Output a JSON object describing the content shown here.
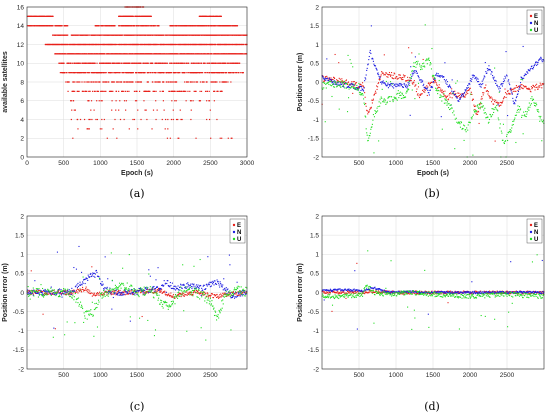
{
  "colors": {
    "E": "#e8201a",
    "N": "#1e1ee0",
    "U": "#22dd22",
    "sat": "#e8201a"
  },
  "chart_data": [
    {
      "id": "a",
      "type": "scatter",
      "panel_label": "(a)",
      "xlabel": "Epoch (s)",
      "ylabel": "available satellites",
      "xlim": [
        0,
        3000
      ],
      "ylim": [
        0,
        16
      ],
      "grid": true,
      "xticks": [
        0,
        500,
        1000,
        1500,
        2000,
        2500,
        3000
      ],
      "yticks": [
        0,
        2,
        4,
        6,
        8,
        10,
        12,
        14,
        16
      ],
      "bands": [
        {
          "y": 16,
          "spans": [
            [
              1330,
              1590
            ]
          ],
          "density": 0.7
        },
        {
          "y": 15,
          "spans": [
            [
              0,
              360
            ],
            [
              1250,
              1700
            ],
            [
              2350,
              2650
            ]
          ],
          "density": 0.9
        },
        {
          "y": 14,
          "spans": [
            [
              0,
              560
            ],
            [
              930,
              1200
            ],
            [
              1250,
              1800
            ],
            [
              1950,
              2880
            ]
          ],
          "density": 0.75
        },
        {
          "y": 13,
          "spans": [
            [
              350,
              560
            ],
            [
              600,
              1250
            ],
            [
              1250,
              3000
            ]
          ],
          "density": 0.75
        },
        {
          "y": 12,
          "spans": [
            [
              250,
              3000
            ]
          ],
          "density": 0.8
        },
        {
          "y": 11,
          "spans": [
            [
              380,
              3000
            ]
          ],
          "density": 0.8
        },
        {
          "y": 10,
          "spans": [
            [
              420,
              2900
            ]
          ],
          "density": 0.55
        },
        {
          "y": 9,
          "spans": [
            [
              450,
              2950
            ]
          ],
          "density": 0.55
        },
        {
          "y": 8,
          "spans": [
            [
              520,
              2800
            ]
          ],
          "density": 0.35
        },
        {
          "y": 7,
          "spans": [
            [
              560,
              2700
            ]
          ],
          "density": 0.25
        },
        {
          "y": 6,
          "spans": [
            [
              580,
              2600
            ]
          ],
          "density": 0.12
        },
        {
          "y": 5,
          "spans": [
            [
              590,
              2500
            ]
          ],
          "density": 0.06
        },
        {
          "y": 4,
          "spans": [
            [
              590,
              2600
            ]
          ],
          "density": 0.05
        },
        {
          "y": 3,
          "spans": [
            [
              590,
              2000
            ]
          ],
          "density": 0.04
        },
        {
          "y": 2,
          "spans": [
            [
              600,
              2800
            ]
          ],
          "density": 0.03
        },
        {
          "y": 1,
          "spans": [
            [
              600,
              620
            ]
          ],
          "density": 0.03
        }
      ]
    },
    {
      "id": "b",
      "type": "scatter",
      "panel_label": "(b)",
      "xlabel": "Epoch (s)",
      "ylabel": "Position error (m)",
      "xlim": [
        0,
        3000
      ],
      "ylim": [
        -2,
        2
      ],
      "grid": true,
      "xticks": [
        500,
        1000,
        1500,
        2000,
        2500
      ],
      "yticks": [
        -2,
        -1.5,
        -1,
        -0.5,
        0,
        0.5,
        1,
        1.5,
        2
      ],
      "legend": {
        "position": "top-right",
        "entries": [
          "E",
          "N",
          "U"
        ]
      },
      "series": [
        {
          "name": "E",
          "scatter": 0.08,
          "outlier_rate": 0.04,
          "points": [
            [
              0,
              0.1
            ],
            [
              300,
              0.0
            ],
            [
              500,
              -0.1
            ],
            [
              560,
              -0.1
            ],
            [
              620,
              -0.9
            ],
            [
              700,
              -0.4
            ],
            [
              800,
              0.2
            ],
            [
              900,
              0.2
            ],
            [
              1000,
              0.15
            ],
            [
              1150,
              0.1
            ],
            [
              1250,
              0.0
            ],
            [
              1300,
              -0.4
            ],
            [
              1400,
              -0.2
            ],
            [
              1500,
              0.1
            ],
            [
              1600,
              -0.2
            ],
            [
              1700,
              -0.4
            ],
            [
              1800,
              -0.3
            ],
            [
              1900,
              -0.4
            ],
            [
              2000,
              -0.2
            ],
            [
              2100,
              -0.9
            ],
            [
              2200,
              -0.1
            ],
            [
              2300,
              -0.5
            ],
            [
              2400,
              -0.6
            ],
            [
              2500,
              -0.3
            ],
            [
              2600,
              -0.2
            ],
            [
              2700,
              -0.1
            ],
            [
              2800,
              -0.2
            ],
            [
              2950,
              -0.1
            ]
          ]
        },
        {
          "name": "N",
          "scatter": 0.06,
          "outlier_rate": 0.05,
          "points": [
            [
              0,
              0.15
            ],
            [
              200,
              -0.05
            ],
            [
              400,
              -0.1
            ],
            [
              560,
              -0.2
            ],
            [
              650,
              0.8
            ],
            [
              700,
              0.5
            ],
            [
              800,
              0.0
            ],
            [
              900,
              -0.1
            ],
            [
              1000,
              -0.1
            ],
            [
              1150,
              -0.1
            ],
            [
              1250,
              0.3
            ],
            [
              1350,
              0.0
            ],
            [
              1450,
              -0.3
            ],
            [
              1550,
              0.2
            ],
            [
              1650,
              0.1
            ],
            [
              1750,
              -0.2
            ],
            [
              1850,
              -0.5
            ],
            [
              1950,
              -0.2
            ],
            [
              2050,
              0.2
            ],
            [
              2150,
              -0.1
            ],
            [
              2250,
              0.4
            ],
            [
              2400,
              -0.2
            ],
            [
              2500,
              0.2
            ],
            [
              2600,
              -0.6
            ],
            [
              2700,
              0.1
            ],
            [
              2800,
              0.3
            ],
            [
              2950,
              0.6
            ]
          ]
        },
        {
          "name": "U",
          "scatter": 0.1,
          "outlier_rate": 0.1,
          "points": [
            [
              0,
              -0.1
            ],
            [
              200,
              -0.05
            ],
            [
              400,
              -0.1
            ],
            [
              560,
              -0.3
            ],
            [
              620,
              -1.7
            ],
            [
              700,
              -0.9
            ],
            [
              800,
              -0.5
            ],
            [
              900,
              -0.5
            ],
            [
              1000,
              -0.4
            ],
            [
              1150,
              -0.3
            ],
            [
              1250,
              0.5
            ],
            [
              1350,
              0.4
            ],
            [
              1450,
              0.6
            ],
            [
              1550,
              -0.2
            ],
            [
              1650,
              -0.5
            ],
            [
              1750,
              -0.7
            ],
            [
              1850,
              -1.1
            ],
            [
              1950,
              -1.3
            ],
            [
              2050,
              -0.8
            ],
            [
              2150,
              -0.6
            ],
            [
              2250,
              -1.0
            ],
            [
              2350,
              -0.6
            ],
            [
              2450,
              -1.6
            ],
            [
              2550,
              -1.3
            ],
            [
              2650,
              -0.7
            ],
            [
              2750,
              -0.9
            ],
            [
              2850,
              -0.4
            ],
            [
              2950,
              -1.0
            ]
          ]
        }
      ]
    },
    {
      "id": "c",
      "type": "scatter",
      "panel_label": "(c)",
      "xlabel": "",
      "ylabel": "Position error (m)",
      "xlim": [
        0,
        3000
      ],
      "ylim": [
        -2,
        2
      ],
      "grid": true,
      "xticks": [
        500,
        1000,
        1500,
        2000,
        2500
      ],
      "yticks": [
        -2,
        -1.5,
        -1,
        -0.5,
        0,
        0.5,
        1,
        1.5,
        2
      ],
      "legend": {
        "position": "top-right",
        "entries": [
          "E",
          "N",
          "U"
        ]
      },
      "series": [
        {
          "name": "E",
          "scatter": 0.06,
          "outlier_rate": 0.03,
          "points": [
            [
              0,
              0.0
            ],
            [
              600,
              0.0
            ],
            [
              700,
              0.05
            ],
            [
              800,
              0.1
            ],
            [
              900,
              -0.05
            ],
            [
              1100,
              0.0
            ],
            [
              1500,
              0.0
            ],
            [
              1800,
              0.05
            ],
            [
              2000,
              -0.1
            ],
            [
              2300,
              0.0
            ],
            [
              2600,
              -0.1
            ],
            [
              2950,
              0.0
            ]
          ]
        },
        {
          "name": "N",
          "scatter": 0.08,
          "outlier_rate": 0.06,
          "points": [
            [
              0,
              0.0
            ],
            [
              600,
              0.02
            ],
            [
              750,
              0.25
            ],
            [
              850,
              0.4
            ],
            [
              950,
              0.5
            ],
            [
              1050,
              0.1
            ],
            [
              1200,
              0.0
            ],
            [
              1400,
              0.0
            ],
            [
              1600,
              0.05
            ],
            [
              1800,
              0.1
            ],
            [
              1900,
              0.3
            ],
            [
              2000,
              0.1
            ],
            [
              2200,
              0.2
            ],
            [
              2400,
              0.1
            ],
            [
              2600,
              0.3
            ],
            [
              2800,
              -0.1
            ],
            [
              2950,
              0.0
            ]
          ]
        },
        {
          "name": "U",
          "scatter": 0.12,
          "outlier_rate": 0.1,
          "points": [
            [
              0,
              0.0
            ],
            [
              600,
              0.0
            ],
            [
              700,
              -0.2
            ],
            [
              800,
              -0.6
            ],
            [
              900,
              -0.5
            ],
            [
              1000,
              -0.1
            ],
            [
              1100,
              0.0
            ],
            [
              1300,
              0.2
            ],
            [
              1500,
              0.0
            ],
            [
              1700,
              0.05
            ],
            [
              1850,
              -0.3
            ],
            [
              1950,
              -0.4
            ],
            [
              2100,
              0.05
            ],
            [
              2300,
              0.0
            ],
            [
              2500,
              -0.2
            ],
            [
              2600,
              -0.7
            ],
            [
              2700,
              -0.1
            ],
            [
              2850,
              0.1
            ],
            [
              2950,
              0.0
            ]
          ]
        }
      ]
    },
    {
      "id": "d",
      "type": "scatter",
      "panel_label": "(d)",
      "xlabel": "",
      "ylabel": "Position error (m)",
      "xlim": [
        0,
        3000
      ],
      "ylim": [
        -2,
        2
      ],
      "grid": true,
      "xticks": [
        500,
        1000,
        1500,
        2000,
        2500
      ],
      "yticks": [
        -2,
        -1.5,
        -1,
        -0.5,
        0,
        0.5,
        1,
        1.5,
        2
      ],
      "legend": {
        "position": "top-right",
        "entries": [
          "E",
          "N",
          "U"
        ]
      },
      "series": [
        {
          "name": "E",
          "scatter": 0.04,
          "outlier_rate": 0.02,
          "points": [
            [
              0,
              0.0
            ],
            [
              500,
              0.0
            ],
            [
              700,
              0.02
            ],
            [
              1000,
              0.0
            ],
            [
              1500,
              0.0
            ],
            [
              2000,
              0.0
            ],
            [
              2500,
              0.0
            ],
            [
              2950,
              0.0
            ]
          ]
        },
        {
          "name": "N",
          "scatter": 0.03,
          "outlier_rate": 0.02,
          "points": [
            [
              0,
              0.05
            ],
            [
              300,
              0.07
            ],
            [
              550,
              0.05
            ],
            [
              700,
              0.12
            ],
            [
              900,
              0.0
            ],
            [
              1200,
              0.02
            ],
            [
              1500,
              0.0
            ],
            [
              2000,
              0.0
            ],
            [
              2500,
              0.0
            ],
            [
              2950,
              0.0
            ]
          ]
        },
        {
          "name": "U",
          "scatter": 0.06,
          "outlier_rate": 0.05,
          "points": [
            [
              0,
              -0.1
            ],
            [
              300,
              -0.1
            ],
            [
              550,
              -0.05
            ],
            [
              600,
              0.2
            ],
            [
              700,
              0.0
            ],
            [
              900,
              -0.05
            ],
            [
              1200,
              0.0
            ],
            [
              1500,
              -0.05
            ],
            [
              2000,
              -0.1
            ],
            [
              2500,
              -0.05
            ],
            [
              2950,
              -0.1
            ]
          ]
        }
      ]
    }
  ]
}
